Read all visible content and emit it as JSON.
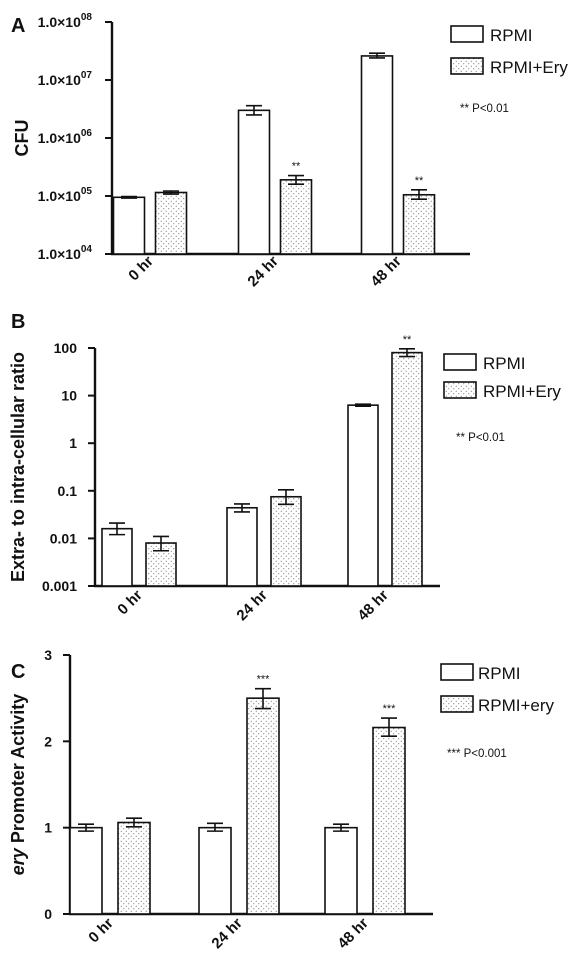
{
  "colors": {
    "ink": "#111111",
    "bar_plain": "#ffffff",
    "dot": "#555555"
  },
  "chart_data": [
    {
      "panel": "A",
      "type": "bar",
      "scale": "log",
      "ylabel": "CFU",
      "ylim": [
        10000,
        100000000
      ],
      "yticks": [
        10000,
        100000,
        1000000,
        10000000,
        100000000
      ],
      "ytick_labels": [
        {
          "base": "1.0×10",
          "exp": "04"
        },
        {
          "base": "1.0×10",
          "exp": "05"
        },
        {
          "base": "1.0×10",
          "exp": "06"
        },
        {
          "base": "1.0×10",
          "exp": "07"
        },
        {
          "base": "1.0×10",
          "exp": "08"
        }
      ],
      "categories": [
        "0 hr",
        "24 hr",
        "48 hr"
      ],
      "series": [
        {
          "name": "RPMI",
          "pattern": "plain",
          "values": [
            95000,
            3000000,
            26000000
          ],
          "err": [
            [
              92000,
              98000
            ],
            [
              2500000,
              3600000
            ],
            [
              24000000,
              29000000
            ]
          ]
        },
        {
          "name": "RPMI+Ery",
          "pattern": "dots",
          "values": [
            115000,
            190000,
            105000
          ],
          "err": [
            [
              108000,
              122000
            ],
            [
              160000,
              225000
            ],
            [
              88000,
              128000
            ]
          ]
        }
      ],
      "significance": [
        null,
        "**",
        "**"
      ],
      "legend_position": "top-right",
      "note": "** P<0.01"
    },
    {
      "panel": "B",
      "type": "bar",
      "scale": "log",
      "ylabel": "Extra- to intra-cellular ratio",
      "ylim": [
        0.001,
        100
      ],
      "yticks": [
        0.001,
        0.01,
        0.1,
        1,
        10,
        100
      ],
      "ytick_labels": [
        "0.001",
        "0.01",
        "0.1",
        "1",
        "10",
        "100"
      ],
      "categories": [
        "0 hr",
        "24 hr",
        "48 hr"
      ],
      "series": [
        {
          "name": "RPMI",
          "pattern": "plain",
          "values": [
            0.016,
            0.044,
            6.3
          ],
          "err": [
            [
              0.012,
              0.021
            ],
            [
              0.036,
              0.053
            ],
            [
              6.0,
              6.6
            ]
          ]
        },
        {
          "name": "RPMI+Ery",
          "pattern": "dots",
          "values": [
            0.008,
            0.075,
            80
          ],
          "err": [
            [
              0.0055,
              0.011
            ],
            [
              0.052,
              0.105
            ],
            [
              66,
              96
            ]
          ]
        }
      ],
      "significance": [
        null,
        null,
        "**"
      ],
      "legend_position": "top-right",
      "note": "** P<0.01"
    },
    {
      "panel": "C",
      "type": "bar",
      "scale": "linear",
      "ylabel_italic": "ery",
      "ylabel_rest": " Promoter Activity",
      "ylim": [
        0,
        3
      ],
      "yticks": [
        0,
        1,
        2,
        3
      ],
      "ytick_labels": [
        "0",
        "1",
        "2",
        "3"
      ],
      "categories": [
        "0 hr",
        "24 hr",
        "48 hr"
      ],
      "series": [
        {
          "name": "RPMI",
          "pattern": "plain",
          "values": [
            1.0,
            1.0,
            1.0
          ],
          "err": [
            [
              0.96,
              1.04
            ],
            [
              0.96,
              1.05
            ],
            [
              0.96,
              1.04
            ]
          ]
        },
        {
          "name": "RPMI+ery",
          "pattern": "dots",
          "values": [
            1.06,
            2.5,
            2.16
          ],
          "err": [
            [
              1.01,
              1.11
            ],
            [
              2.38,
              2.61
            ],
            [
              2.06,
              2.27
            ]
          ]
        }
      ],
      "significance": [
        null,
        "***",
        "***"
      ],
      "legend_position": "top-right",
      "note": "*** P<0.001"
    }
  ]
}
